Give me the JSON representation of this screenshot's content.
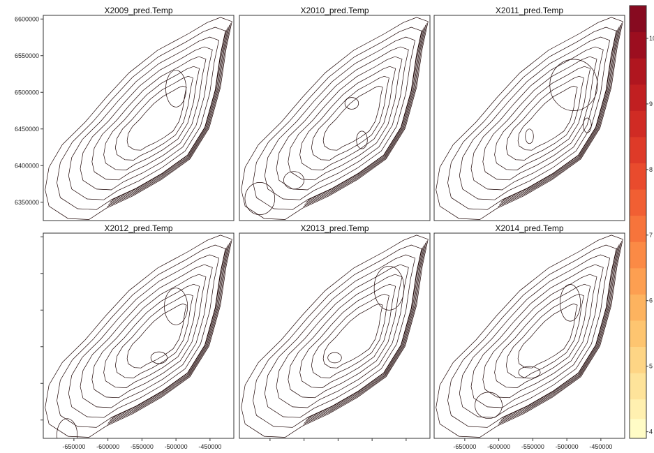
{
  "chart_data": {
    "type": "heatmap",
    "layout": {
      "rows": 2,
      "cols": 3
    },
    "panels": [
      {
        "title": "X2009_pred.Temp",
        "hot_spots": [
          {
            "x": -500000,
            "y": 6505000,
            "rx": 15000,
            "ry": 25000
          }
        ]
      },
      {
        "title": "X2010_pred.Temp",
        "hot_spots": [
          {
            "x": -665000,
            "y": 6355000,
            "rx": 22000,
            "ry": 22000
          },
          {
            "x": -615000,
            "y": 6380000,
            "rx": 15000,
            "ry": 12000
          },
          {
            "x": -530000,
            "y": 6485000,
            "rx": 10000,
            "ry": 8000
          },
          {
            "x": -515000,
            "y": 6435000,
            "rx": 8000,
            "ry": 12000
          }
        ]
      },
      {
        "title": "X2011_pred.Temp",
        "hot_spots": [
          {
            "x": -490000,
            "y": 6510000,
            "rx": 35000,
            "ry": 35000
          },
          {
            "x": -555000,
            "y": 6440000,
            "rx": 6000,
            "ry": 10000
          },
          {
            "x": -470000,
            "y": 6455000,
            "rx": 6000,
            "ry": 10000
          }
        ]
      },
      {
        "title": "X2012_pred.Temp",
        "hot_spots": [
          {
            "x": -500000,
            "y": 6505000,
            "rx": 17000,
            "ry": 25000
          },
          {
            "x": -660000,
            "y": 6330000,
            "rx": 15000,
            "ry": 22000
          },
          {
            "x": -525000,
            "y": 6435000,
            "rx": 12000,
            "ry": 8000
          }
        ]
      },
      {
        "title": "X2013_pred.Temp",
        "hot_spots": [
          {
            "x": -475000,
            "y": 6530000,
            "rx": 22000,
            "ry": 30000
          },
          {
            "x": -555000,
            "y": 6435000,
            "rx": 10000,
            "ry": 7000
          }
        ]
      },
      {
        "title": "X2014_pred.Temp",
        "hot_spots": [
          {
            "x": -495000,
            "y": 6510000,
            "rx": 15000,
            "ry": 25000
          },
          {
            "x": -615000,
            "y": 6370000,
            "rx": 20000,
            "ry": 18000
          },
          {
            "x": -555000,
            "y": 6415000,
            "rx": 16000,
            "ry": 8000
          }
        ]
      }
    ],
    "x_ticks": [
      "-650000",
      "-600000",
      "-550000",
      "-500000",
      "-450000"
    ],
    "x_tick_values": [
      -650000,
      -600000,
      -550000,
      -500000,
      -450000
    ],
    "y_ticks": [
      "6350000",
      "6400000",
      "6450000",
      "6500000",
      "6550000",
      "6600000"
    ],
    "y_tick_values": [
      6350000,
      6400000,
      6450000,
      6500000,
      6550000,
      6600000
    ],
    "xlim": [
      -695000,
      -415000
    ],
    "ylim": [
      6325000,
      6605000
    ],
    "colorbar": {
      "ticks": [
        "4",
        "5",
        "6",
        "7",
        "8",
        "9",
        "10"
      ],
      "tick_values": [
        4,
        5,
        6,
        7,
        8,
        9,
        10
      ],
      "range": [
        3.9,
        10.5
      ],
      "levels": [
        3.9,
        4.2,
        4.5,
        4.9,
        5.3,
        5.7,
        6.1,
        6.5,
        6.9,
        7.3,
        7.7,
        8.1,
        8.5,
        8.9,
        9.3,
        9.7,
        10.1,
        10.5
      ],
      "colors": [
        "#fffcc6",
        "#fff0b0",
        "#fee39a",
        "#fed585",
        "#fec570",
        "#fdb35f",
        "#fd9f51",
        "#fb8a45",
        "#f7743b",
        "#f15f33",
        "#e94b2d",
        "#de3a28",
        "#d02b24",
        "#c11f21",
        "#b0161f",
        "#9c0e1f",
        "#870a20"
      ]
    }
  }
}
